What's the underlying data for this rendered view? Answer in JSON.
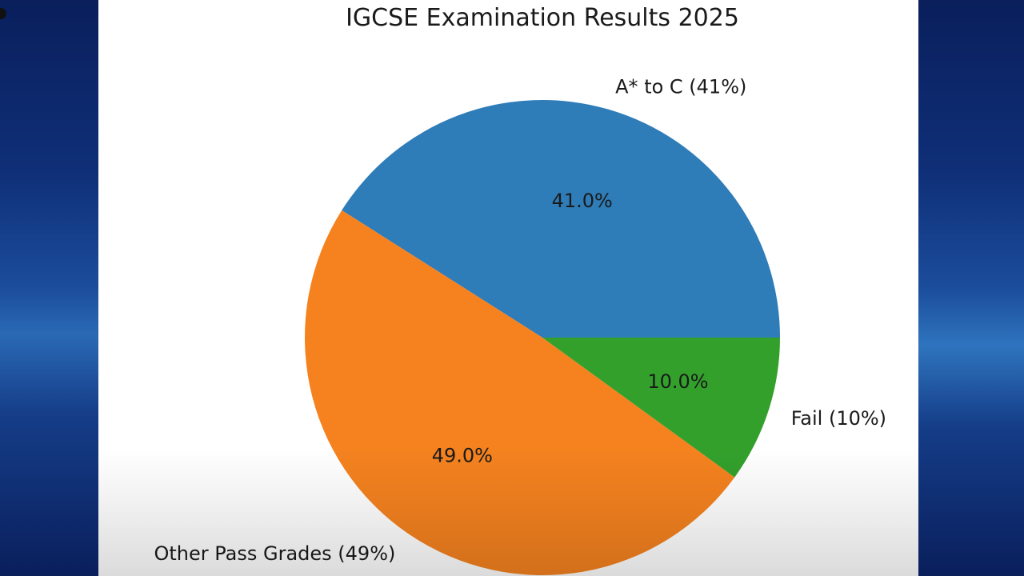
{
  "chart_data": {
    "type": "pie",
    "title": "IGCSE Examination Results 2025",
    "slices": [
      {
        "label": "A* to C (41%)",
        "value": 41.0,
        "pct_label": "41.0%",
        "color": "#2e7cb8"
      },
      {
        "label": "Other Pass Grades (49%)",
        "value": 49.0,
        "pct_label": "49.0%",
        "color": "#f5821f"
      },
      {
        "label": "Fail (10%)",
        "value": 10.0,
        "pct_label": "10.0%",
        "color": "#33a02c"
      }
    ],
    "start_angle": 0,
    "direction": "counterclockwise"
  }
}
